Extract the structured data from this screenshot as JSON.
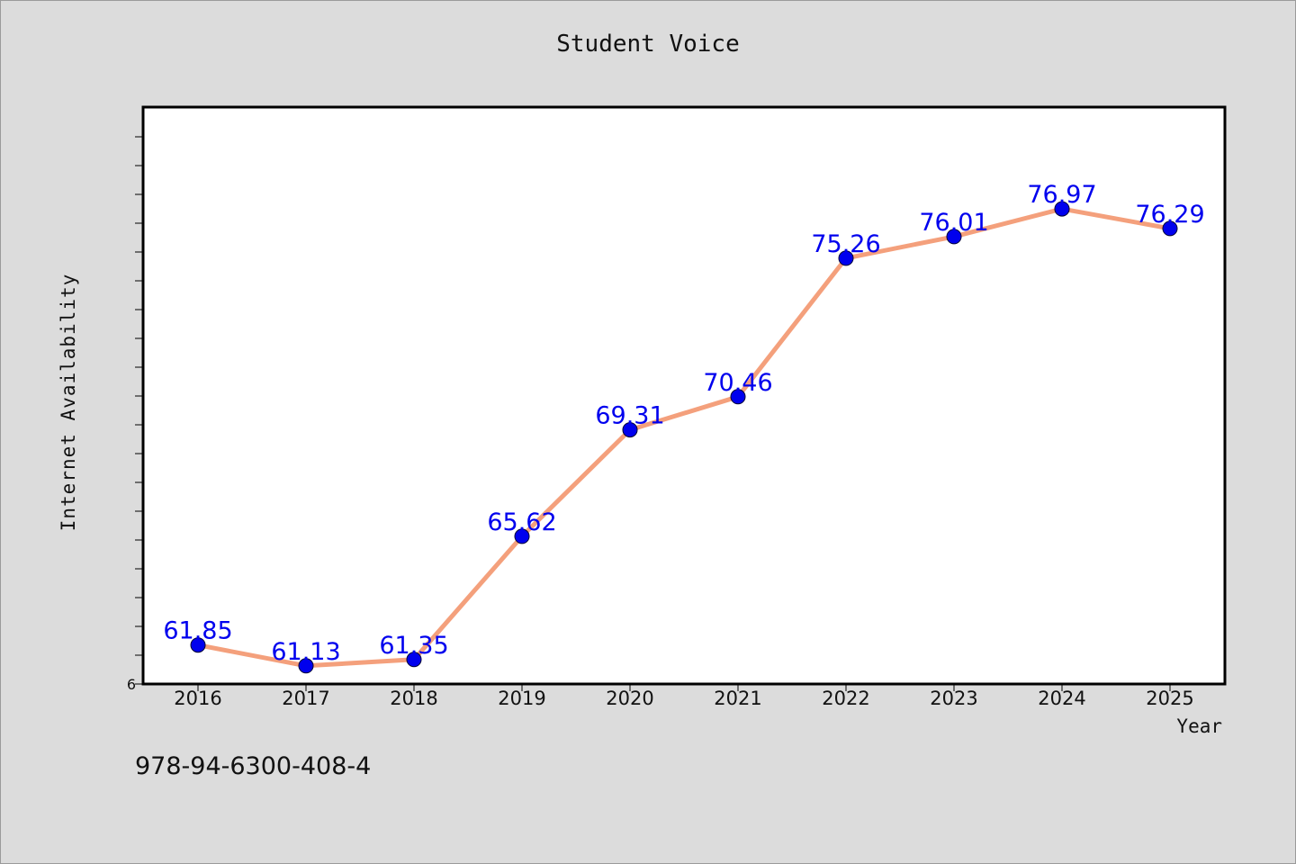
{
  "chart_data": {
    "type": "line",
    "title": "Student Voice",
    "xlabel": "Year",
    "ylabel": "Internet Availability",
    "categories": [
      "2016",
      "2017",
      "2018",
      "2019",
      "2020",
      "2021",
      "2022",
      "2023",
      "2024",
      "2025"
    ],
    "series": [
      {
        "values": [
          61.85,
          61.13,
          61.35,
          65.62,
          69.31,
          70.46,
          75.26,
          76.01,
          76.97,
          76.29
        ],
        "labels": [
          "61.85",
          "61.13",
          "61.35",
          "65.62",
          "69.31",
          "70.46",
          "75.26",
          "76.01",
          "76.97",
          "76.29"
        ],
        "line_color": "#f4a07c",
        "marker_color": "#0000ee",
        "label_color": "#0000ee"
      }
    ],
    "ylim": [
      60.5,
      80.5
    ],
    "y_tick_labels": [
      "6"
    ],
    "grid": false,
    "background": "#dcdcdc",
    "plot_background": "#ffffff"
  },
  "footer": {
    "isbn": "978-94-6300-408-4"
  }
}
